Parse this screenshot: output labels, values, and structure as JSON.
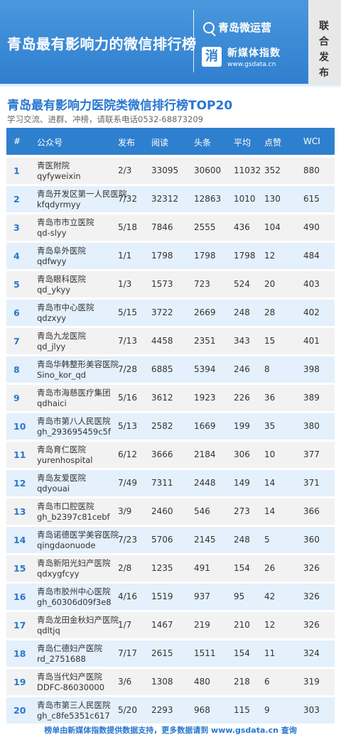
{
  "banner": {
    "title": "青岛最有影响力的微信排行榜",
    "brand_primary": "青岛微运营",
    "brand_secondary_logo": "消",
    "brand_secondary_name": "新媒体指数",
    "brand_secondary_url": "www.gsdata.cn",
    "side_tag": "联合发布"
  },
  "header": {
    "title": "青岛最有影响力医院类微信排行榜TOP20",
    "subtitle": "学习交流、进群、冲榜，请联系电话0532-68873209"
  },
  "columns": [
    "#",
    "公众号",
    "发布",
    "阅读",
    "头条",
    "平均",
    "点赞",
    "WCI"
  ],
  "rows": [
    {
      "rank": "1",
      "name": "青医附院",
      "account": "qyfyweixin",
      "pub": "2/3",
      "read": "33095",
      "head": "30600",
      "avg": "11032",
      "like": "352",
      "wci": "880"
    },
    {
      "rank": "2",
      "name": "青岛开发区第一人民医院",
      "account": "kfqdyrmyy",
      "pub": "7/32",
      "read": "32312",
      "head": "12863",
      "avg": "1010",
      "like": "130",
      "wci": "615"
    },
    {
      "rank": "3",
      "name": "青岛市市立医院",
      "account": "qd-slyy",
      "pub": "5/18",
      "read": "7846",
      "head": "2555",
      "avg": "436",
      "like": "104",
      "wci": "490"
    },
    {
      "rank": "4",
      "name": "青岛阜外医院",
      "account": "qdfwyy",
      "pub": "1/1",
      "read": "1798",
      "head": "1798",
      "avg": "1798",
      "like": "12",
      "wci": "484"
    },
    {
      "rank": "5",
      "name": "青岛眼科医院",
      "account": "qd_ykyy",
      "pub": "1/3",
      "read": "1573",
      "head": "723",
      "avg": "524",
      "like": "20",
      "wci": "403"
    },
    {
      "rank": "6",
      "name": "青岛市中心医院",
      "account": "qdzxyy",
      "pub": "5/15",
      "read": "3722",
      "head": "2669",
      "avg": "248",
      "like": "28",
      "wci": "402"
    },
    {
      "rank": "7",
      "name": "青岛九龙医院",
      "account": "qd_jlyy",
      "pub": "7/13",
      "read": "4458",
      "head": "2351",
      "avg": "343",
      "like": "15",
      "wci": "401"
    },
    {
      "rank": "8",
      "name": "青岛华韩整形美容医院",
      "account": "Sino_kor_qd",
      "pub": "7/28",
      "read": "6885",
      "head": "5394",
      "avg": "246",
      "like": "8",
      "wci": "398"
    },
    {
      "rank": "9",
      "name": "青岛市海慈医疗集团",
      "account": "qdhaici",
      "pub": "5/16",
      "read": "3612",
      "head": "1923",
      "avg": "226",
      "like": "36",
      "wci": "389"
    },
    {
      "rank": "10",
      "name": "青岛市第八人民医院",
      "account": "gh_293695459c5f",
      "pub": "5/13",
      "read": "2582",
      "head": "1669",
      "avg": "199",
      "like": "35",
      "wci": "380"
    },
    {
      "rank": "11",
      "name": "青岛育仁医院",
      "account": "yurenhospital",
      "pub": "6/12",
      "read": "3666",
      "head": "2184",
      "avg": "306",
      "like": "10",
      "wci": "377"
    },
    {
      "rank": "12",
      "name": "青岛友爱医院",
      "account": "qdyouai",
      "pub": "7/49",
      "read": "7311",
      "head": "2448",
      "avg": "149",
      "like": "14",
      "wci": "371"
    },
    {
      "rank": "13",
      "name": "青岛市口腔医院",
      "account": "gh_b2397c81cebf",
      "pub": "3/9",
      "read": "2460",
      "head": "546",
      "avg": "273",
      "like": "14",
      "wci": "366"
    },
    {
      "rank": "14",
      "name": "青岛诺德医学美容医院",
      "account": "qingdaonuode",
      "pub": "7/23",
      "read": "5706",
      "head": "2145",
      "avg": "248",
      "like": "5",
      "wci": "360"
    },
    {
      "rank": "15",
      "name": "青岛新阳光妇产医院",
      "account": "qdxygfcyy",
      "pub": "2/8",
      "read": "1235",
      "head": "491",
      "avg": "154",
      "like": "26",
      "wci": "326"
    },
    {
      "rank": "16",
      "name": "青岛市胶州中心医院",
      "account": "gh_60306d09f3e8",
      "pub": "4/16",
      "read": "1519",
      "head": "937",
      "avg": "95",
      "like": "42",
      "wci": "326"
    },
    {
      "rank": "17",
      "name": "青岛龙田金秋妇产医院",
      "account": "qdltjq",
      "pub": "1/7",
      "read": "1467",
      "head": "219",
      "avg": "210",
      "like": "12",
      "wci": "326"
    },
    {
      "rank": "18",
      "name": "青岛仁德妇产医院",
      "account": "rd_2751688",
      "pub": "7/17",
      "read": "2615",
      "head": "1511",
      "avg": "154",
      "like": "11",
      "wci": "324"
    },
    {
      "rank": "19",
      "name": "青岛当代妇产医院",
      "account": "DDFC-86030000",
      "pub": "3/6",
      "read": "1308",
      "head": "480",
      "avg": "218",
      "like": "6",
      "wci": "319"
    },
    {
      "rank": "20",
      "name": "青岛市第三人民医院",
      "account": "gh_c8fe5351c617",
      "pub": "5/20",
      "read": "2293",
      "head": "968",
      "avg": "115",
      "like": "9",
      "wci": "303"
    }
  ],
  "footer": "榜单由新媒体指数提供数据支持，更多数据请到 www.gsdata.cn 查询",
  "colors": {
    "primary": "#2f7fcf",
    "title": "#2877cf",
    "row_a": "#f2f2f2",
    "row_b": "#e4f0fb"
  }
}
